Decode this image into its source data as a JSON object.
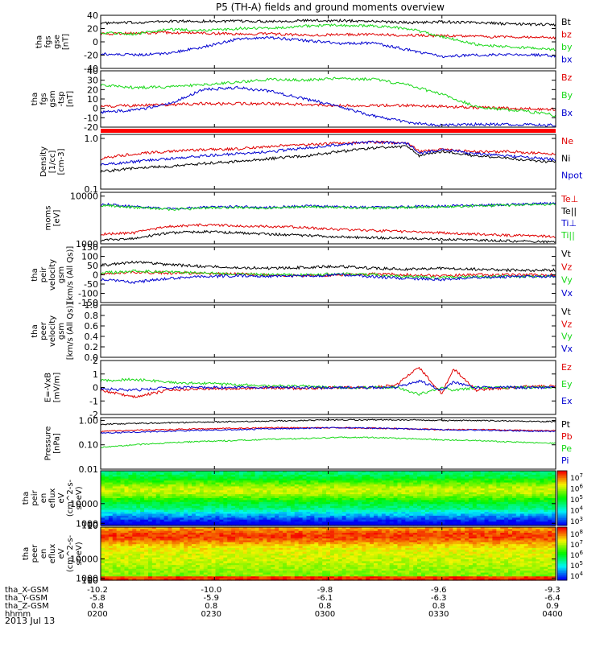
{
  "title": "P5 (TH-A) fields and ground moments overview",
  "date_label": "2013 Jul 13",
  "footer": {
    "rows": [
      {
        "label": "tha_X-GSM",
        "values": [
          "-10.2",
          "-10.0",
          "-9.8",
          "-9.6",
          "-9.3"
        ]
      },
      {
        "label": "tha_Y-GSM",
        "values": [
          "-5.8",
          "-5.9",
          "-6.1",
          "-6.3",
          "-6.4"
        ]
      },
      {
        "label": "tha_Z-GSM",
        "values": [
          "0.8",
          "0.8",
          "0.8",
          "0.8",
          "0.9"
        ]
      },
      {
        "label": "hhmm",
        "values": [
          "0200",
          "0230",
          "0300",
          "0330",
          "0400"
        ]
      }
    ]
  },
  "colors": {
    "black": "#000000",
    "red": "#e00000",
    "green": "#18d818",
    "blue": "#0000d0"
  },
  "chart_data": [
    {
      "id": "panel1",
      "type": "line",
      "ylabel": [
        "tha",
        "fgs",
        "gse",
        "[nT]"
      ],
      "ylim": [
        -40,
        40
      ],
      "yticks": [
        {
          "v": 40,
          "t": "40"
        },
        {
          "v": 20,
          "t": "20"
        },
        {
          "v": 0,
          "t": "0"
        },
        {
          "v": -20,
          "t": "-20"
        },
        {
          "v": -40,
          "t": "-40"
        }
      ],
      "x_hours": [
        0,
        0.15,
        0.3,
        0.45,
        0.6,
        0.75,
        0.9,
        1.05,
        1.2,
        1.35,
        1.5,
        1.65,
        1.8,
        1.95,
        2.0
      ],
      "series": [
        {
          "name": "Bt",
          "color": "black",
          "values": [
            28,
            29,
            31,
            31,
            31,
            31,
            32,
            32,
            31,
            29,
            30,
            29,
            27,
            26,
            26
          ]
        },
        {
          "name": "bz",
          "color": "red",
          "values": [
            12,
            13,
            14,
            13,
            12,
            12,
            10,
            11,
            11,
            10,
            9,
            8,
            7,
            7,
            6
          ]
        },
        {
          "name": "by",
          "color": "green",
          "values": [
            14,
            12,
            19,
            17,
            20,
            21,
            24,
            25,
            24,
            20,
            8,
            -4,
            -8,
            -10,
            -12
          ]
        },
        {
          "name": "bx",
          "color": "blue",
          "values": [
            -18,
            -20,
            -17,
            -8,
            4,
            6,
            2,
            -2,
            -2,
            -12,
            -22,
            -20,
            -19,
            -20,
            -22
          ]
        }
      ]
    },
    {
      "id": "panel2",
      "type": "line",
      "ylabel": [
        "tha",
        "fgs",
        "gsm",
        "-tsp",
        "[nT]"
      ],
      "ylim": [
        -20,
        40
      ],
      "yticks": [
        {
          "v": 40,
          "t": "40"
        },
        {
          "v": 30,
          "t": "30"
        },
        {
          "v": 20,
          "t": "20"
        },
        {
          "v": 10,
          "t": "10"
        },
        {
          "v": 0,
          "t": "0"
        },
        {
          "v": -10,
          "t": "-10"
        },
        {
          "v": -20,
          "t": "-20"
        }
      ],
      "x_hours": [
        0,
        0.15,
        0.3,
        0.45,
        0.6,
        0.75,
        0.9,
        1.05,
        1.2,
        1.35,
        1.5,
        1.65,
        1.8,
        1.95,
        2.0
      ],
      "series": [
        {
          "name": "Bz",
          "color": "red",
          "values": [
            2,
            3,
            4,
            5,
            5,
            5,
            4,
            3,
            3,
            3,
            2,
            1,
            0,
            -1,
            -1
          ]
        },
        {
          "name": "By",
          "color": "green",
          "values": [
            25,
            22,
            23,
            25,
            28,
            31,
            30,
            32,
            31,
            25,
            15,
            2,
            -2,
            -5,
            -8
          ]
        },
        {
          "name": "Bx",
          "color": "blue",
          "values": [
            -4,
            -2,
            5,
            20,
            22,
            18,
            10,
            2,
            -8,
            -15,
            -18,
            -17,
            -17,
            -18,
            -18
          ]
        }
      ]
    },
    {
      "id": "panel3",
      "type": "line",
      "log": true,
      "ylabel": [
        "Density",
        "[1/cc]",
        "[cm-3]"
      ],
      "ylim": [
        0.1,
        1.2
      ],
      "yticks": [
        {
          "v": 1.0,
          "t": "1.0"
        },
        {
          "v": 0.1,
          "t": "0.1"
        }
      ],
      "x_hours": [
        0,
        0.15,
        0.3,
        0.45,
        0.6,
        0.75,
        0.9,
        1.05,
        1.2,
        1.35,
        1.4,
        1.5,
        1.65,
        1.8,
        1.95,
        2.0
      ],
      "series": [
        {
          "name": "Ne",
          "color": "red",
          "values": [
            0.4,
            0.5,
            0.55,
            0.6,
            0.62,
            0.7,
            0.75,
            0.8,
            0.85,
            0.8,
            0.55,
            0.6,
            0.55,
            0.55,
            0.5,
            0.5
          ]
        },
        {
          "name": "Ni",
          "color": "black",
          "values": [
            0.22,
            0.26,
            0.28,
            0.32,
            0.35,
            0.4,
            0.45,
            0.55,
            0.65,
            0.7,
            0.45,
            0.55,
            0.45,
            0.4,
            0.35,
            0.35
          ]
        },
        {
          "name": "Npot",
          "color": "blue",
          "values": [
            0.3,
            0.35,
            0.4,
            0.45,
            0.5,
            0.55,
            0.65,
            0.75,
            0.85,
            0.8,
            0.5,
            0.6,
            0.5,
            0.45,
            0.4,
            0.38
          ]
        }
      ]
    },
    {
      "id": "panel4",
      "type": "line",
      "log": true,
      "ylabel": [
        "moms",
        "[eV]"
      ],
      "ylim": [
        1000,
        12000
      ],
      "yticks": [
        {
          "v": 10000,
          "t": "10000"
        },
        {
          "v": 1000,
          "t": "1000"
        }
      ],
      "x_hours": [
        0,
        0.15,
        0.3,
        0.45,
        0.6,
        0.75,
        0.9,
        1.05,
        1.2,
        1.35,
        1.5,
        1.65,
        1.8,
        1.95,
        2.0
      ],
      "series": [
        {
          "name": "Te⊥",
          "color": "red",
          "values": [
            1600,
            1700,
            2300,
            2500,
            2400,
            2300,
            2200,
            2000,
            1900,
            1800,
            1700,
            1600,
            1500,
            1450,
            1400
          ]
        },
        {
          "name": "Te||",
          "color": "black",
          "values": [
            1200,
            1300,
            1700,
            1800,
            1700,
            1600,
            1500,
            1400,
            1350,
            1300,
            1250,
            1200,
            1150,
            1100,
            1100
          ]
        },
        {
          "name": "Ti⊥",
          "color": "blue",
          "values": [
            6800,
            6000,
            5500,
            5800,
            6000,
            5800,
            6200,
            6000,
            5800,
            6000,
            6200,
            6400,
            6600,
            7000,
            7000
          ]
        },
        {
          "name": "Ti||",
          "color": "green",
          "values": [
            6500,
            5800,
            5300,
            5600,
            5800,
            5600,
            6000,
            5800,
            5600,
            5800,
            6000,
            6200,
            6400,
            6700,
            6700
          ]
        }
      ]
    },
    {
      "id": "panel5",
      "type": "line",
      "ylabel": [
        "tha",
        "peir",
        "velocity",
        "gsm",
        "[km/s (All Qs)]"
      ],
      "ylim": [
        -150,
        150
      ],
      "yticks": [
        {
          "v": 150,
          "t": "150"
        },
        {
          "v": 100,
          "t": "100"
        },
        {
          "v": 50,
          "t": "50"
        },
        {
          "v": 0,
          "t": "0"
        },
        {
          "v": -50,
          "t": "-50"
        },
        {
          "v": -100,
          "t": "-100"
        },
        {
          "v": -150,
          "t": "-150"
        }
      ],
      "x_hours": [
        0,
        0.15,
        0.3,
        0.45,
        0.6,
        0.75,
        0.9,
        1.05,
        1.2,
        1.35,
        1.5,
        1.65,
        1.8,
        1.95,
        2.0
      ],
      "series": [
        {
          "name": "Vt",
          "color": "black",
          "values": [
            50,
            70,
            55,
            45,
            40,
            35,
            40,
            45,
            35,
            30,
            35,
            30,
            25,
            25,
            25
          ]
        },
        {
          "name": "Vz",
          "color": "red",
          "values": [
            5,
            15,
            10,
            8,
            5,
            0,
            -5,
            0,
            5,
            0,
            -5,
            0,
            0,
            0,
            0
          ]
        },
        {
          "name": "Vy",
          "color": "green",
          "values": [
            10,
            20,
            15,
            10,
            5,
            0,
            0,
            5,
            0,
            -10,
            -15,
            -10,
            -10,
            -8,
            -8
          ]
        },
        {
          "name": "Vx",
          "color": "blue",
          "values": [
            -25,
            -40,
            -20,
            -10,
            -5,
            -10,
            -5,
            0,
            -10,
            -20,
            -25,
            -15,
            -10,
            -8,
            -8
          ]
        }
      ]
    },
    {
      "id": "panel6",
      "type": "line",
      "ylabel": [
        "tha",
        "peer",
        "velocity",
        "gsm",
        "[km/s (All Qs)]"
      ],
      "ylim": [
        0,
        1
      ],
      "yticks": [
        {
          "v": 1.0,
          "t": "1.0"
        },
        {
          "v": 0.8,
          "t": "0.8"
        },
        {
          "v": 0.6,
          "t": "0.6"
        },
        {
          "v": 0.4,
          "t": "0.4"
        },
        {
          "v": 0.2,
          "t": "0.2"
        },
        {
          "v": 0.0,
          "t": "0.0"
        }
      ],
      "series": [
        {
          "name": "Vt",
          "color": "black"
        },
        {
          "name": "Vz",
          "color": "red"
        },
        {
          "name": "Vy",
          "color": "green"
        },
        {
          "name": "Vx",
          "color": "blue"
        }
      ]
    },
    {
      "id": "panel7",
      "type": "line",
      "ylabel": [
        "E=-VxB",
        "[mV/m]"
      ],
      "ylim": [
        -2,
        2
      ],
      "yticks": [
        {
          "v": 2,
          "t": "2"
        },
        {
          "v": 1,
          "t": "1"
        },
        {
          "v": 0,
          "t": "0"
        },
        {
          "v": -1,
          "t": "-1"
        },
        {
          "v": -2,
          "t": "-2"
        }
      ],
      "x_hours": [
        0,
        0.15,
        0.3,
        0.45,
        0.6,
        0.75,
        0.9,
        1.05,
        1.2,
        1.3,
        1.4,
        1.5,
        1.55,
        1.65,
        1.8,
        1.95,
        2.0
      ],
      "series": [
        {
          "name": "Ez",
          "color": "red",
          "values": [
            -0.2,
            -0.7,
            -0.2,
            -0.1,
            -0.1,
            0,
            -0.1,
            0,
            0,
            0.2,
            1.5,
            -0.5,
            1.4,
            -0.2,
            0,
            0.1,
            0.1
          ]
        },
        {
          "name": "Ey",
          "color": "green",
          "values": [
            0.5,
            0.6,
            0.4,
            0.3,
            0.2,
            0.1,
            0.1,
            0,
            0,
            0,
            -0.5,
            0,
            -0.2,
            0,
            0,
            0,
            0
          ]
        },
        {
          "name": "Ex",
          "color": "blue",
          "values": [
            -0.1,
            -0.2,
            0,
            0,
            0,
            0,
            0,
            0,
            0,
            0,
            0.5,
            -0.2,
            0.4,
            0,
            0,
            0,
            0
          ]
        }
      ]
    },
    {
      "id": "panel8",
      "type": "line",
      "log": true,
      "ylabel": [
        "Pressure",
        "[nPa]"
      ],
      "ylim": [
        0.01,
        1.3
      ],
      "yticks": [
        {
          "v": 1.0,
          "t": "1.00"
        },
        {
          "v": 0.1,
          "t": "0.10"
        },
        {
          "v": 0.01,
          "t": "0.01"
        }
      ],
      "x_hours": [
        0,
        0.15,
        0.3,
        0.45,
        0.6,
        0.75,
        0.9,
        1.05,
        1.2,
        1.35,
        1.5,
        1.65,
        1.8,
        1.95,
        2.0
      ],
      "series": [
        {
          "name": "Pt",
          "color": "black",
          "values": [
            0.7,
            0.75,
            0.8,
            0.85,
            0.9,
            0.95,
            1.0,
            1.05,
            1.05,
            1.05,
            1.0,
            1.0,
            0.95,
            0.9,
            0.9
          ]
        },
        {
          "name": "Pb",
          "color": "red",
          "values": [
            0.35,
            0.4,
            0.42,
            0.45,
            0.48,
            0.5,
            0.5,
            0.5,
            0.48,
            0.45,
            0.42,
            0.42,
            0.4,
            0.38,
            0.38
          ]
        },
        {
          "name": "Pe",
          "color": "green",
          "values": [
            0.08,
            0.1,
            0.12,
            0.14,
            0.15,
            0.17,
            0.18,
            0.2,
            0.2,
            0.18,
            0.16,
            0.15,
            0.13,
            0.12,
            0.12
          ]
        },
        {
          "name": "Pi",
          "color": "blue",
          "values": [
            0.3,
            0.33,
            0.36,
            0.4,
            0.42,
            0.45,
            0.48,
            0.5,
            0.48,
            0.45,
            0.42,
            0.4,
            0.38,
            0.36,
            0.36
          ]
        }
      ]
    },
    {
      "id": "panel9",
      "type": "heatmap",
      "ylabel": [
        "tha",
        "peir",
        "en",
        "eflux",
        "eV",
        "(cm^2-s-",
        "sr-eV)"
      ],
      "ylim": [
        8,
        25000
      ],
      "yticks": [
        {
          "v": 10000,
          "t": "10000"
        },
        {
          "v": 1000,
          "t": "1000"
        },
        {
          "v": 100,
          "t": "100"
        },
        {
          "v": 10,
          "t": "10"
        }
      ],
      "colorbar": {
        "ticks": [
          "10^7",
          "10^6",
          "10^5",
          "10^4",
          "10^3"
        ]
      }
    },
    {
      "id": "panel10",
      "type": "heatmap",
      "ylabel": [
        "tha",
        "peer",
        "en",
        "eflux",
        "eV",
        "(cm^2-s-",
        "sr-eV)"
      ],
      "ylim": [
        8,
        25000
      ],
      "yticks": [
        {
          "v": 10000,
          "t": "10000"
        },
        {
          "v": 1000,
          "t": "1000"
        },
        {
          "v": 100,
          "t": "100"
        },
        {
          "v": 10,
          "t": "10"
        }
      ],
      "colorbar": {
        "ticks": [
          "10^8",
          "10^7",
          "10^6",
          "10^5",
          "10^4"
        ]
      }
    }
  ]
}
